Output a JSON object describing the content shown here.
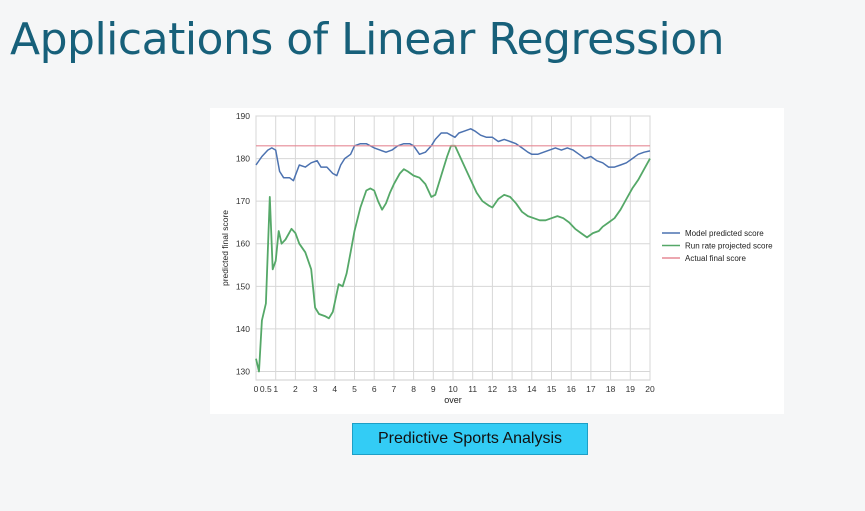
{
  "slide": {
    "title": "Applications of Linear Regression",
    "caption": "Predictive Sports Analysis"
  },
  "colors": {
    "title": "#17607a",
    "model": "#4c72b0",
    "runrate": "#55a868",
    "actual": "#e58a95",
    "caption_bg": "#33ccf5",
    "grid": "#d7d7d7"
  },
  "chart_data": {
    "type": "line",
    "title": "",
    "xlabel": "over",
    "ylabel": "predicted final score",
    "xlim": [
      0,
      20
    ],
    "ylim": [
      128,
      190
    ],
    "x_ticks": [
      0,
      1,
      2,
      3,
      4,
      5,
      6,
      7,
      8,
      9,
      10,
      11,
      12,
      13,
      14,
      15,
      16,
      17,
      18,
      19,
      20
    ],
    "y_ticks": [
      130,
      140,
      150,
      160,
      170,
      180,
      190
    ],
    "x_extra_ticks": [
      {
        "value": 0.5,
        "label": "0.5"
      }
    ],
    "grid": true,
    "legend_position": "right",
    "series": [
      {
        "name": "Model predicted score",
        "color": "#4c72b0",
        "points": [
          [
            0,
            178.5
          ],
          [
            0.3,
            180.5
          ],
          [
            0.6,
            182
          ],
          [
            0.8,
            182.5
          ],
          [
            1,
            182
          ],
          [
            1.2,
            177
          ],
          [
            1.4,
            175.5
          ],
          [
            1.7,
            175.5
          ],
          [
            1.9,
            174.8
          ],
          [
            2.2,
            178.5
          ],
          [
            2.5,
            178
          ],
          [
            2.8,
            179
          ],
          [
            3.1,
            179.5
          ],
          [
            3.3,
            178
          ],
          [
            3.6,
            178
          ],
          [
            3.9,
            176.5
          ],
          [
            4.1,
            176
          ],
          [
            4.3,
            178.5
          ],
          [
            4.5,
            180
          ],
          [
            4.8,
            181
          ],
          [
            5,
            183
          ],
          [
            5.3,
            183.5
          ],
          [
            5.6,
            183.5
          ],
          [
            5.8,
            183
          ],
          [
            6,
            182.5
          ],
          [
            6.3,
            182
          ],
          [
            6.6,
            181.5
          ],
          [
            6.9,
            182
          ],
          [
            7.2,
            183
          ],
          [
            7.5,
            183.5
          ],
          [
            7.8,
            183.5
          ],
          [
            8,
            183
          ],
          [
            8.3,
            181
          ],
          [
            8.6,
            181.5
          ],
          [
            8.9,
            183
          ],
          [
            9.1,
            184.5
          ],
          [
            9.4,
            186
          ],
          [
            9.7,
            186
          ],
          [
            9.9,
            185.5
          ],
          [
            10.1,
            185
          ],
          [
            10.3,
            186
          ],
          [
            10.6,
            186.5
          ],
          [
            10.9,
            187
          ],
          [
            11.1,
            186.5
          ],
          [
            11.4,
            185.5
          ],
          [
            11.7,
            185
          ],
          [
            12,
            185
          ],
          [
            12.3,
            184
          ],
          [
            12.6,
            184.5
          ],
          [
            12.9,
            184
          ],
          [
            13.2,
            183.5
          ],
          [
            13.5,
            182.5
          ],
          [
            13.8,
            181.5
          ],
          [
            14,
            181
          ],
          [
            14.3,
            181
          ],
          [
            14.6,
            181.5
          ],
          [
            14.9,
            182
          ],
          [
            15.2,
            182.5
          ],
          [
            15.5,
            182
          ],
          [
            15.8,
            182.5
          ],
          [
            16.1,
            182
          ],
          [
            16.4,
            181
          ],
          [
            16.7,
            180
          ],
          [
            17,
            180.5
          ],
          [
            17.3,
            179.5
          ],
          [
            17.6,
            179
          ],
          [
            17.9,
            178
          ],
          [
            18.2,
            178
          ],
          [
            18.5,
            178.5
          ],
          [
            18.8,
            179
          ],
          [
            19.1,
            180
          ],
          [
            19.4,
            181
          ],
          [
            19.7,
            181.5
          ],
          [
            20,
            181.8
          ]
        ]
      },
      {
        "name": "Run rate projected score",
        "color": "#55a868",
        "points": [
          [
            0,
            133
          ],
          [
            0.15,
            130
          ],
          [
            0.3,
            142
          ],
          [
            0.5,
            146
          ],
          [
            0.7,
            171
          ],
          [
            0.85,
            154
          ],
          [
            1,
            156
          ],
          [
            1.15,
            163
          ],
          [
            1.3,
            160
          ],
          [
            1.5,
            161
          ],
          [
            1.8,
            163.5
          ],
          [
            2,
            162.5
          ],
          [
            2.2,
            160
          ],
          [
            2.5,
            158
          ],
          [
            2.8,
            154
          ],
          [
            3,
            145
          ],
          [
            3.2,
            143.5
          ],
          [
            3.5,
            143
          ],
          [
            3.7,
            142.5
          ],
          [
            3.9,
            144
          ],
          [
            4.2,
            150.5
          ],
          [
            4.4,
            150
          ],
          [
            4.6,
            153
          ],
          [
            4.8,
            158
          ],
          [
            5,
            163
          ],
          [
            5.3,
            168.5
          ],
          [
            5.6,
            172.5
          ],
          [
            5.8,
            173
          ],
          [
            6,
            172.5
          ],
          [
            6.2,
            170
          ],
          [
            6.4,
            168
          ],
          [
            6.6,
            169.5
          ],
          [
            6.8,
            172
          ],
          [
            7,
            174
          ],
          [
            7.3,
            176.5
          ],
          [
            7.5,
            177.5
          ],
          [
            7.7,
            177
          ],
          [
            8,
            176
          ],
          [
            8.3,
            175.5
          ],
          [
            8.6,
            174
          ],
          [
            8.9,
            171
          ],
          [
            9.1,
            171.5
          ],
          [
            9.4,
            176
          ],
          [
            9.7,
            180.5
          ],
          [
            9.9,
            183
          ],
          [
            10.1,
            183
          ],
          [
            10.3,
            181
          ],
          [
            10.6,
            178
          ],
          [
            10.9,
            175
          ],
          [
            11.2,
            172
          ],
          [
            11.5,
            170
          ],
          [
            11.8,
            169
          ],
          [
            12,
            168.5
          ],
          [
            12.3,
            170.5
          ],
          [
            12.6,
            171.5
          ],
          [
            12.9,
            171
          ],
          [
            13.2,
            169.5
          ],
          [
            13.5,
            167.5
          ],
          [
            13.8,
            166.5
          ],
          [
            14.1,
            166
          ],
          [
            14.4,
            165.5
          ],
          [
            14.7,
            165.5
          ],
          [
            15,
            166
          ],
          [
            15.3,
            166.5
          ],
          [
            15.6,
            166
          ],
          [
            15.9,
            165
          ],
          [
            16.2,
            163.5
          ],
          [
            16.5,
            162.5
          ],
          [
            16.8,
            161.5
          ],
          [
            17.1,
            162.5
          ],
          [
            17.4,
            163
          ],
          [
            17.6,
            164
          ],
          [
            17.9,
            165
          ],
          [
            18.2,
            166
          ],
          [
            18.5,
            168
          ],
          [
            18.8,
            170.5
          ],
          [
            19.1,
            173
          ],
          [
            19.4,
            175
          ],
          [
            19.7,
            177.5
          ],
          [
            20,
            180
          ]
        ]
      },
      {
        "name": "Actual final score",
        "color": "#e58a95",
        "points": [
          [
            0,
            183
          ],
          [
            20,
            183
          ]
        ]
      }
    ]
  }
}
